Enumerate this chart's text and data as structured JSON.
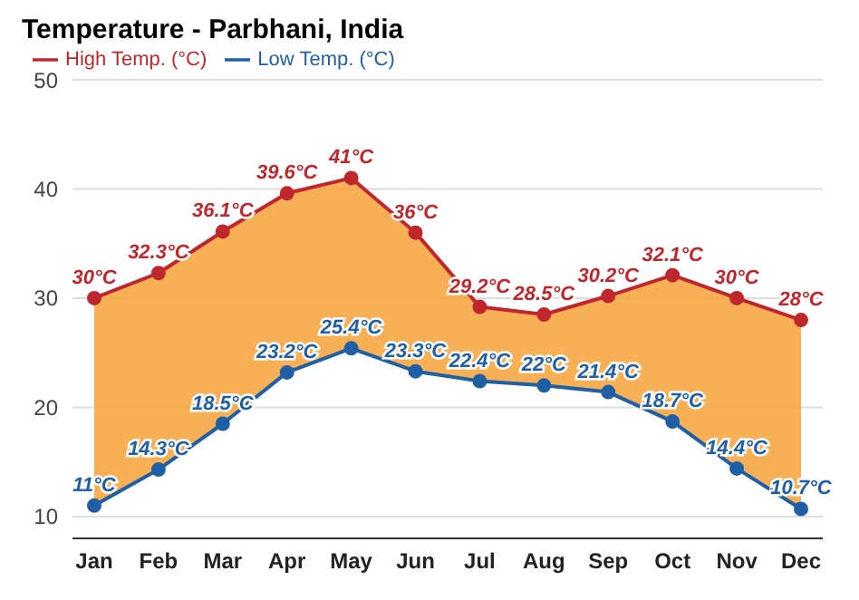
{
  "chart_data": {
    "type": "line",
    "title": "Temperature - Parbhani, India",
    "categories": [
      "Jan",
      "Feb",
      "Mar",
      "Apr",
      "May",
      "Jun",
      "Jul",
      "Aug",
      "Sep",
      "Oct",
      "Nov",
      "Dec"
    ],
    "series": [
      {
        "name": "Low Temp. (°C)",
        "color": "#1f5fa5",
        "values": [
          11,
          14.3,
          18.5,
          23.2,
          25.4,
          23.3,
          22.4,
          22,
          21.4,
          18.7,
          14.4,
          10.7
        ],
        "value_labels": [
          "11°C",
          "14.3°C",
          "18.5°C",
          "23.2°C",
          "25.4°C",
          "23.3°C",
          "22.4°C",
          "22°C",
          "21.4°C",
          "18.7°C",
          "14.4°C",
          "10.7°C"
        ]
      },
      {
        "name": "High Temp. (°C)",
        "color": "#c0272d",
        "values": [
          30,
          32.3,
          36.1,
          39.6,
          41,
          36,
          29.2,
          28.5,
          30.2,
          32.1,
          30,
          28
        ],
        "value_labels": [
          "30°C",
          "32.3°C",
          "36.1°C",
          "39.6°C",
          "41°C",
          "36°C",
          "29.2°C",
          "28.5°C",
          "30.2°C",
          "32.1°C",
          "30°C",
          "28°C"
        ]
      }
    ],
    "ylim": [
      8,
      50
    ],
    "yticks": [
      10,
      20,
      30,
      40,
      50
    ],
    "grid": "y",
    "legend": "top left",
    "marker": "circle",
    "line_style": "solid"
  }
}
